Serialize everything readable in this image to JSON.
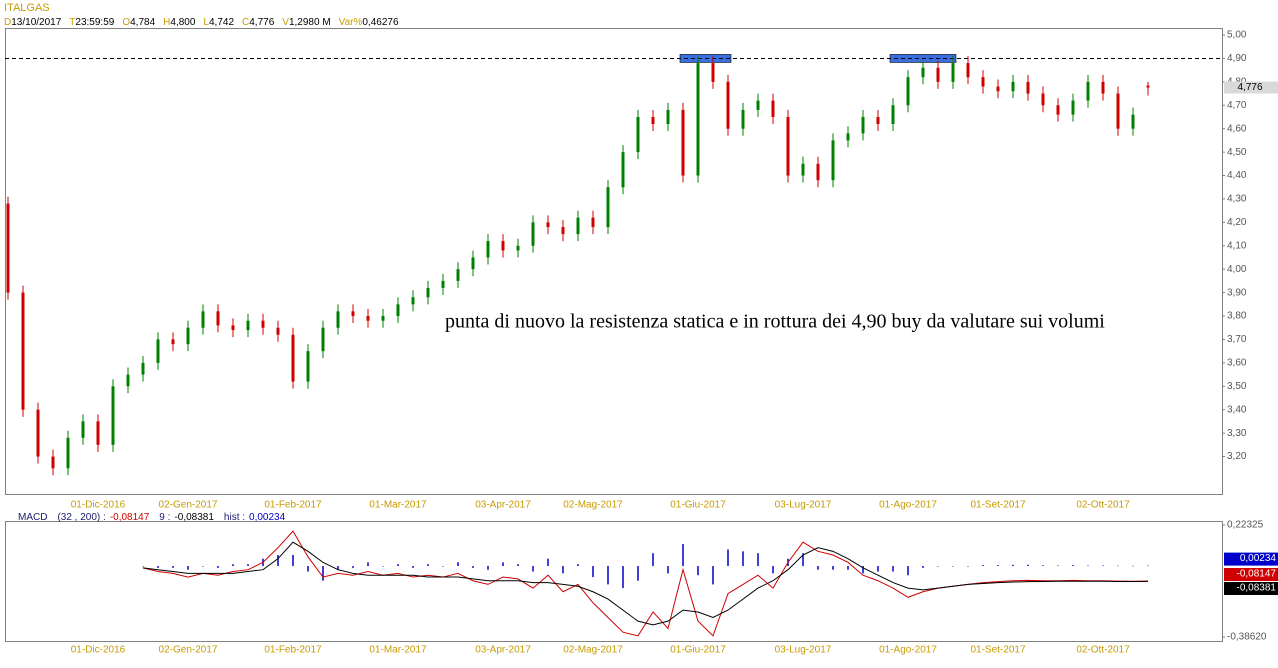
{
  "chart_data": [
    {
      "type": "candlestick",
      "title": "ITALGAS",
      "info": [
        {
          "key": "D",
          "text": "13/10/2017"
        },
        {
          "key": "T",
          "text": "23:59:59"
        },
        {
          "key": "O",
          "text": "4,784"
        },
        {
          "key": "H",
          "text": "4,800"
        },
        {
          "key": "L",
          "text": "4,742"
        },
        {
          "key": "C",
          "text": "4,776"
        },
        {
          "key": "V",
          "text": "1,2980 M"
        },
        {
          "key": "Var%",
          "text": "0,46276"
        }
      ],
      "annotation": "punta di nuovo la resistenza statica e in rottura dei 4,90 buy da valutare sui volumi",
      "categories": [
        null,
        null,
        null,
        null,
        null,
        null,
        "01-Dic-2016",
        null,
        null,
        null,
        null,
        null,
        "02-Gen-2017",
        null,
        null,
        null,
        null,
        null,
        null,
        "01-Feb-2017",
        null,
        null,
        null,
        null,
        null,
        null,
        "01-Mar-2017",
        null,
        null,
        null,
        null,
        null,
        null,
        "03-Apr-2017",
        null,
        null,
        null,
        null,
        null,
        "02-Mag-2017",
        null,
        null,
        null,
        null,
        null,
        null,
        "01-Giu-2017",
        null,
        null,
        null,
        null,
        null,
        null,
        "03-Lug-2017",
        null,
        null,
        null,
        null,
        null,
        null,
        "01-Ago-2017",
        null,
        null,
        null,
        null,
        null,
        "01-Set-2017",
        null,
        null,
        null,
        null,
        null,
        null,
        "02-Ott-2017",
        null,
        null,
        null
      ],
      "open": [
        4.28,
        3.9,
        3.4,
        3.2,
        3.15,
        3.28,
        3.35,
        3.25,
        3.5,
        3.55,
        3.6,
        3.7,
        3.68,
        3.75,
        3.82,
        3.76,
        3.74,
        3.78,
        3.75,
        3.72,
        3.52,
        3.65,
        3.75,
        3.82,
        3.8,
        3.78,
        3.8,
        3.85,
        3.88,
        3.92,
        3.95,
        4.0,
        4.05,
        4.12,
        4.08,
        4.1,
        4.2,
        4.18,
        4.15,
        4.22,
        4.18,
        4.35,
        4.5,
        4.65,
        4.62,
        4.68,
        4.4,
        4.88,
        4.8,
        4.6,
        4.68,
        4.72,
        4.65,
        4.4,
        4.45,
        4.38,
        4.55,
        4.58,
        4.65,
        4.62,
        4.7,
        4.82,
        4.86,
        4.8,
        4.88,
        4.82,
        4.78,
        4.76,
        4.8,
        4.75,
        4.7,
        4.66,
        4.72,
        4.8,
        4.75,
        4.6,
        4.784
      ],
      "high": [
        4.31,
        3.93,
        3.43,
        3.23,
        3.31,
        3.38,
        3.38,
        3.53,
        3.58,
        3.63,
        3.73,
        3.73,
        3.78,
        3.85,
        3.85,
        3.79,
        3.81,
        3.81,
        3.78,
        3.75,
        3.68,
        3.78,
        3.85,
        3.85,
        3.83,
        3.83,
        3.88,
        3.91,
        3.95,
        3.98,
        4.03,
        4.08,
        4.15,
        4.15,
        4.13,
        4.23,
        4.23,
        4.21,
        4.25,
        4.25,
        4.38,
        4.53,
        4.68,
        4.68,
        4.71,
        4.71,
        4.91,
        4.91,
        4.83,
        4.71,
        4.75,
        4.75,
        4.68,
        4.48,
        4.48,
        4.58,
        4.61,
        4.68,
        4.68,
        4.73,
        4.85,
        4.89,
        4.89,
        4.91,
        4.91,
        4.85,
        4.81,
        4.83,
        4.83,
        4.78,
        4.73,
        4.75,
        4.83,
        4.83,
        4.78,
        4.69,
        4.8
      ],
      "low": [
        3.87,
        3.37,
        3.17,
        3.12,
        3.12,
        3.25,
        3.22,
        3.22,
        3.47,
        3.52,
        3.57,
        3.65,
        3.65,
        3.72,
        3.73,
        3.71,
        3.71,
        3.72,
        3.69,
        3.49,
        3.49,
        3.62,
        3.72,
        3.77,
        3.75,
        3.75,
        3.77,
        3.82,
        3.85,
        3.89,
        3.92,
        3.97,
        4.02,
        4.05,
        4.05,
        4.07,
        4.15,
        4.12,
        4.12,
        4.15,
        4.15,
        4.32,
        4.47,
        4.59,
        4.59,
        4.37,
        4.37,
        4.77,
        4.57,
        4.57,
        4.65,
        4.62,
        4.37,
        4.37,
        4.35,
        4.35,
        4.52,
        4.55,
        4.59,
        4.59,
        4.67,
        4.79,
        4.77,
        4.77,
        4.79,
        4.75,
        4.73,
        4.73,
        4.72,
        4.67,
        4.63,
        4.63,
        4.69,
        4.72,
        4.57,
        4.57,
        4.742
      ],
      "close": [
        3.9,
        3.4,
        3.2,
        3.15,
        3.28,
        3.35,
        3.25,
        3.5,
        3.55,
        3.6,
        3.7,
        3.68,
        3.75,
        3.82,
        3.76,
        3.74,
        3.78,
        3.75,
        3.72,
        3.52,
        3.65,
        3.75,
        3.82,
        3.8,
        3.78,
        3.8,
        3.85,
        3.88,
        3.92,
        3.95,
        4.0,
        4.05,
        4.12,
        4.08,
        4.1,
        4.2,
        4.18,
        4.15,
        4.22,
        4.18,
        4.35,
        4.5,
        4.65,
        4.62,
        4.68,
        4.4,
        4.88,
        4.8,
        4.6,
        4.68,
        4.72,
        4.65,
        4.4,
        4.45,
        4.38,
        4.55,
        4.58,
        4.65,
        4.62,
        4.7,
        4.82,
        4.86,
        4.8,
        4.88,
        4.82,
        4.78,
        4.76,
        4.8,
        4.75,
        4.7,
        4.66,
        4.72,
        4.8,
        4.75,
        4.6,
        4.66,
        4.776
      ],
      "up_color": "#008000",
      "down_color": "#d00000",
      "last_price": {
        "value": 4.776,
        "label": "4,776"
      },
      "resistance": 4.9,
      "highlight_ranges": [
        [
          45,
          48
        ],
        [
          59,
          63
        ]
      ],
      "highlight_color": "#3a6fe0",
      "ylim": [
        3.04,
        5.03
      ],
      "yticks": [
        {
          "value": 3.2,
          "label": "3,20"
        },
        {
          "value": 3.3,
          "label": "3,30"
        },
        {
          "value": 3.4,
          "label": "3,40"
        },
        {
          "value": 3.5,
          "label": "3,50"
        },
        {
          "value": 3.6,
          "label": "3,60"
        },
        {
          "value": 3.7,
          "label": "3,70"
        },
        {
          "value": 3.8,
          "label": "3,80"
        },
        {
          "value": 3.9,
          "label": "3,90"
        },
        {
          "value": 4.0,
          "label": "4,00"
        },
        {
          "value": 4.1,
          "label": "4,10"
        },
        {
          "value": 4.2,
          "label": "4,20"
        },
        {
          "value": 4.3,
          "label": "4,30"
        },
        {
          "value": 4.4,
          "label": "4,40"
        },
        {
          "value": 4.5,
          "label": "4,50"
        },
        {
          "value": 4.6,
          "label": "4,60"
        },
        {
          "value": 4.7,
          "label": "4,70"
        },
        {
          "value": 4.8,
          "label": "4,80"
        },
        {
          "value": 4.9,
          "label": "4,90"
        },
        {
          "value": 5.0,
          "label": "5,00"
        }
      ],
      "grid": false
    },
    {
      "type": "macd",
      "title": "MACD",
      "series": [
        {
          "name": "(32 , 200) :",
          "color": "#d00000",
          "kind": "line",
          "values": [
            null,
            null,
            null,
            null,
            null,
            null,
            null,
            null,
            null,
            -0.01,
            -0.03,
            -0.04,
            -0.06,
            -0.04,
            -0.05,
            -0.03,
            -0.02,
            0.02,
            0.1,
            0.19,
            0.05,
            -0.06,
            -0.04,
            -0.05,
            -0.03,
            -0.05,
            -0.04,
            -0.06,
            -0.05,
            -0.06,
            -0.04,
            -0.08,
            -0.1,
            -0.06,
            -0.07,
            -0.12,
            -0.05,
            -0.14,
            -0.1,
            -0.2,
            -0.28,
            -0.36,
            -0.38,
            -0.25,
            -0.34,
            -0.02,
            -0.3,
            -0.38,
            -0.15,
            -0.1,
            -0.05,
            -0.12,
            0.02,
            0.13,
            0.08,
            0.06,
            0.02,
            -0.05,
            -0.08,
            -0.12,
            -0.17,
            -0.14,
            -0.12,
            -0.11,
            -0.1,
            -0.09,
            -0.085,
            -0.08,
            -0.078,
            -0.08,
            -0.08,
            -0.078,
            -0.08,
            -0.08,
            -0.082,
            -0.083,
            -0.08147
          ],
          "value_labels": [
            null,
            null,
            null,
            null,
            null,
            null,
            null,
            null,
            null,
            null,
            null,
            null,
            null,
            null,
            null,
            null,
            null,
            null,
            null,
            null,
            null,
            null,
            null,
            null,
            null,
            null,
            null,
            null,
            null,
            null,
            null,
            null,
            null,
            null,
            null,
            null,
            null,
            null,
            null,
            null,
            null,
            null,
            null,
            null,
            null,
            null,
            null,
            null,
            null,
            null,
            null,
            null,
            null,
            null,
            null,
            null,
            null,
            null,
            null,
            null,
            null,
            null,
            null,
            null,
            null,
            null,
            null,
            null,
            null,
            null,
            null,
            null,
            null,
            null,
            null,
            null,
            "-0,08147"
          ]
        },
        {
          "name": "9 :",
          "color": "#000000",
          "kind": "line",
          "values": [
            null,
            null,
            null,
            null,
            null,
            null,
            null,
            null,
            null,
            -0.01,
            -0.02,
            -0.03,
            -0.04,
            -0.04,
            -0.04,
            -0.04,
            -0.03,
            -0.02,
            0.04,
            0.13,
            0.08,
            0.02,
            -0.02,
            -0.04,
            -0.05,
            -0.05,
            -0.05,
            -0.05,
            -0.06,
            -0.06,
            -0.06,
            -0.07,
            -0.08,
            -0.08,
            -0.08,
            -0.09,
            -0.09,
            -0.1,
            -0.11,
            -0.14,
            -0.18,
            -0.24,
            -0.3,
            -0.32,
            -0.3,
            -0.24,
            -0.25,
            -0.28,
            -0.24,
            -0.18,
            -0.12,
            -0.08,
            -0.02,
            0.06,
            0.1,
            0.08,
            0.04,
            -0.01,
            -0.05,
            -0.09,
            -0.12,
            -0.13,
            -0.12,
            -0.11,
            -0.1,
            -0.095,
            -0.09,
            -0.087,
            -0.085,
            -0.084,
            -0.083,
            -0.083,
            -0.083,
            -0.083,
            -0.084,
            -0.084,
            -0.08381
          ],
          "value_labels": [
            null,
            null,
            null,
            null,
            null,
            null,
            null,
            null,
            null,
            null,
            null,
            null,
            null,
            null,
            null,
            null,
            null,
            null,
            null,
            null,
            null,
            null,
            null,
            null,
            null,
            null,
            null,
            null,
            null,
            null,
            null,
            null,
            null,
            null,
            null,
            null,
            null,
            null,
            null,
            null,
            null,
            null,
            null,
            null,
            null,
            null,
            null,
            null,
            null,
            null,
            null,
            null,
            null,
            null,
            null,
            null,
            null,
            null,
            null,
            null,
            null,
            null,
            null,
            null,
            null,
            null,
            null,
            null,
            null,
            null,
            null,
            null,
            null,
            null,
            null,
            null,
            "-0,08381"
          ]
        },
        {
          "name": "hist :",
          "color": "#0000cc",
          "kind": "bar",
          "values": [
            null,
            null,
            null,
            null,
            null,
            null,
            null,
            null,
            null,
            0.0,
            -0.01,
            -0.01,
            -0.02,
            0.0,
            -0.01,
            0.01,
            0.01,
            0.04,
            0.06,
            0.06,
            -0.03,
            -0.08,
            -0.02,
            -0.01,
            0.02,
            0.0,
            0.01,
            -0.01,
            0.01,
            0.0,
            0.02,
            -0.01,
            -0.02,
            0.02,
            0.01,
            -0.03,
            0.04,
            -0.04,
            0.01,
            -0.06,
            -0.1,
            -0.12,
            -0.08,
            0.07,
            -0.04,
            0.12,
            -0.05,
            -0.1,
            0.09,
            0.08,
            0.07,
            -0.04,
            0.04,
            0.07,
            -0.02,
            -0.02,
            -0.02,
            -0.04,
            -0.03,
            -0.03,
            -0.05,
            -0.01,
            0.0,
            0.0,
            0.0,
            0.005,
            0.005,
            0.007,
            0.007,
            0.004,
            0.003,
            0.005,
            0.003,
            0.003,
            0.002,
            0.001,
            0.00234
          ],
          "value_labels": [
            null,
            null,
            null,
            null,
            null,
            null,
            null,
            null,
            null,
            null,
            null,
            null,
            null,
            null,
            null,
            null,
            null,
            null,
            null,
            null,
            null,
            null,
            null,
            null,
            null,
            null,
            null,
            null,
            null,
            null,
            null,
            null,
            null,
            null,
            null,
            null,
            null,
            null,
            null,
            null,
            null,
            null,
            null,
            null,
            null,
            null,
            null,
            null,
            null,
            null,
            null,
            null,
            null,
            null,
            null,
            null,
            null,
            null,
            null,
            null,
            null,
            null,
            null,
            null,
            null,
            null,
            null,
            null,
            null,
            null,
            null,
            null,
            null,
            null,
            null,
            null,
            "0,00234"
          ]
        }
      ],
      "ylim": [
        -0.3862,
        0.22325
      ],
      "yticks": [
        {
          "value": 0.22325,
          "label": "0,22325"
        },
        {
          "value": -0.3862,
          "label": "-0,38620"
        }
      ]
    }
  ]
}
